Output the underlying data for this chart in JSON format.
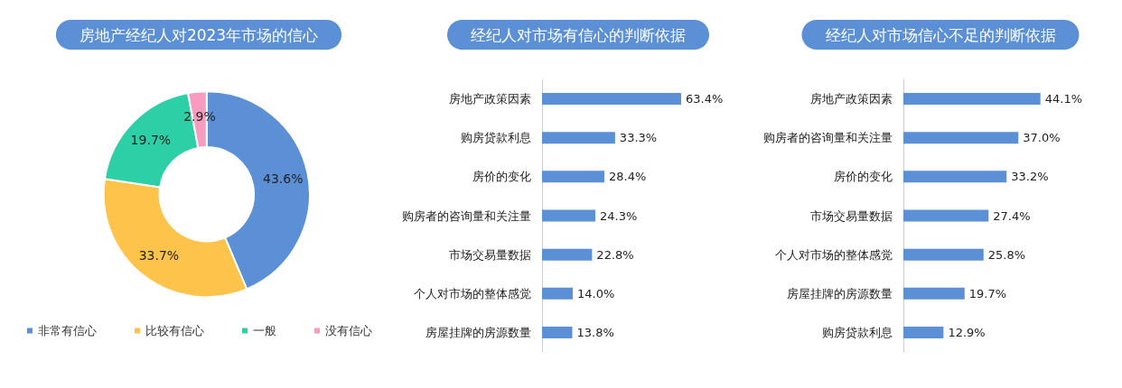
{
  "chart_data": [
    {
      "type": "donut",
      "title": "房地产经纪人对2023年市场的信心",
      "categories": [
        "非常有信心",
        "比较有信心",
        "一般",
        "没有信心"
      ],
      "values": [
        43.6,
        33.7,
        19.7,
        2.9
      ],
      "colors": [
        "#5b8fd6",
        "#fdc34b",
        "#2dd0a6",
        "#f79cbf"
      ],
      "value_labels": [
        "43.6%",
        "33.7%",
        "19.7%",
        "2.9%"
      ],
      "legend": "bottom"
    },
    {
      "type": "bar",
      "orientation": "horizontal",
      "title": "经纪人对市场有信心的判断依据",
      "categories": [
        "房地产政策因素",
        "购房贷款利息",
        "房价的变化",
        "购房者的咨询量和关注量",
        "市场交易量数据",
        "个人对市场的整体感觉",
        "房屋挂牌的房源数量"
      ],
      "values": [
        63.4,
        33.3,
        28.4,
        24.3,
        22.8,
        14.0,
        13.8
      ],
      "color": "#5b8fd6",
      "value_labels": [
        "63.4%",
        "33.3%",
        "28.4%",
        "24.3%",
        "22.8%",
        "14.0%",
        "13.8%"
      ],
      "tick_labels": "y"
    },
    {
      "type": "bar",
      "orientation": "horizontal",
      "title": "经纪人对市场信心不足的判断依据",
      "categories": [
        "房地产政策因素",
        "购房者的咨询量和关注量",
        "房价的变化",
        "市场交易量数据",
        "个人对市场的整体感觉",
        "房屋挂牌的房源数量",
        "购房贷款利息"
      ],
      "values": [
        44.1,
        37.0,
        33.2,
        27.4,
        25.8,
        19.7,
        12.9
      ],
      "color": "#5b8fd6",
      "value_labels": [
        "44.1%",
        "37.0%",
        "33.2%",
        "27.4%",
        "25.8%",
        "19.7%",
        "12.9%"
      ],
      "tick_labels": "y"
    }
  ]
}
